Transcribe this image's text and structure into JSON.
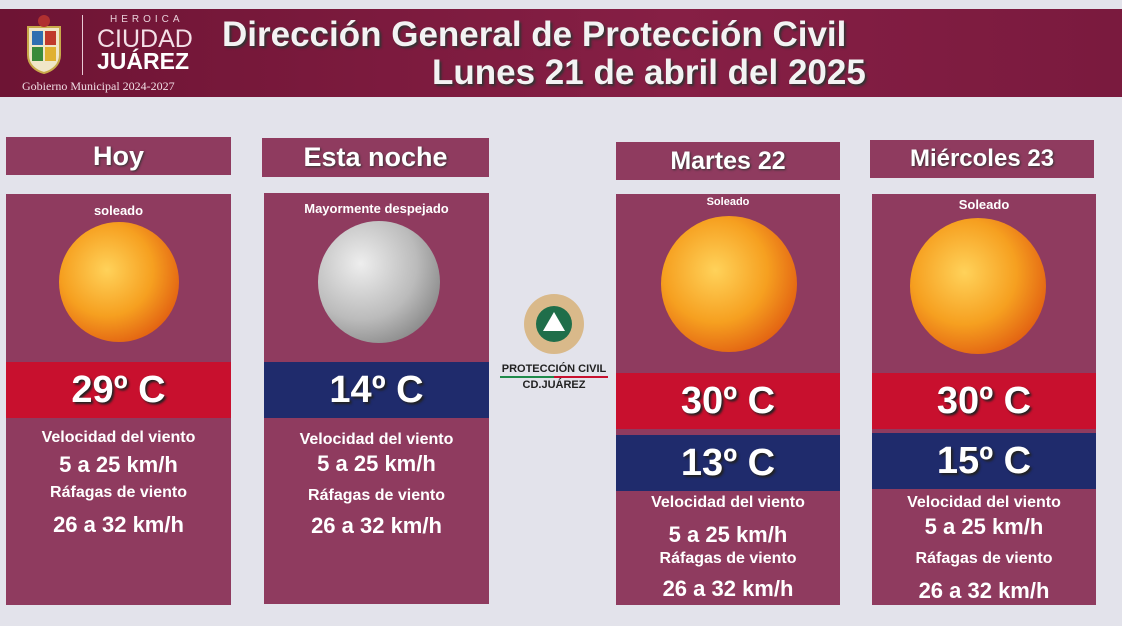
{
  "header": {
    "heroica": "HEROICA",
    "ciudad": "CIUDAD",
    "juarez": "JUÁREZ",
    "gobierno": "Gobierno Municipal 2024-2027",
    "title": "Dirección General de Protección Civil",
    "date": "Lunes 21 de abril del 2025"
  },
  "logo": {
    "line1": "PROTECCIÓN CIVIL",
    "line2": "CD.JUÁREZ"
  },
  "colors": {
    "header": "#7a1a3e",
    "card": "#8f3b5f",
    "max": "#c8102e",
    "min": "#1f2b6c"
  },
  "cards": [
    {
      "title": "Hoy",
      "condition": "soleado",
      "icon": "sun-icon",
      "temp": "29º C",
      "wind_label": "Velocidad del viento",
      "wind": "5 a 25 km/h",
      "gust_label": "Ráfagas de viento",
      "gust": "26 a 32 km/h"
    },
    {
      "title": "Esta noche",
      "condition": "Mayormente despejado",
      "icon": "moon-icon",
      "temp": "14º C",
      "wind_label": "Velocidad del viento",
      "wind": "5 a 25 km/h",
      "gust_label": "Ráfagas de viento",
      "gust": "26 a 32 km/h"
    },
    {
      "title": "Martes 22",
      "condition": "Soleado",
      "icon": "sun-icon",
      "max": "30º C",
      "min": "13º C",
      "wind_label": "Velocidad del viento",
      "wind": "5 a 25 km/h",
      "gust_label": "Ráfagas de viento",
      "gust": "26 a 32 km/h"
    },
    {
      "title": "Miércoles 23",
      "condition": "Soleado",
      "icon": "sun-icon",
      "max": "30º C",
      "min": "15º C",
      "wind_label": "Velocidad del viento",
      "wind": "5 a 25 km/h",
      "gust_label": "Ráfagas de viento",
      "gust": "26 a 32 km/h"
    }
  ]
}
